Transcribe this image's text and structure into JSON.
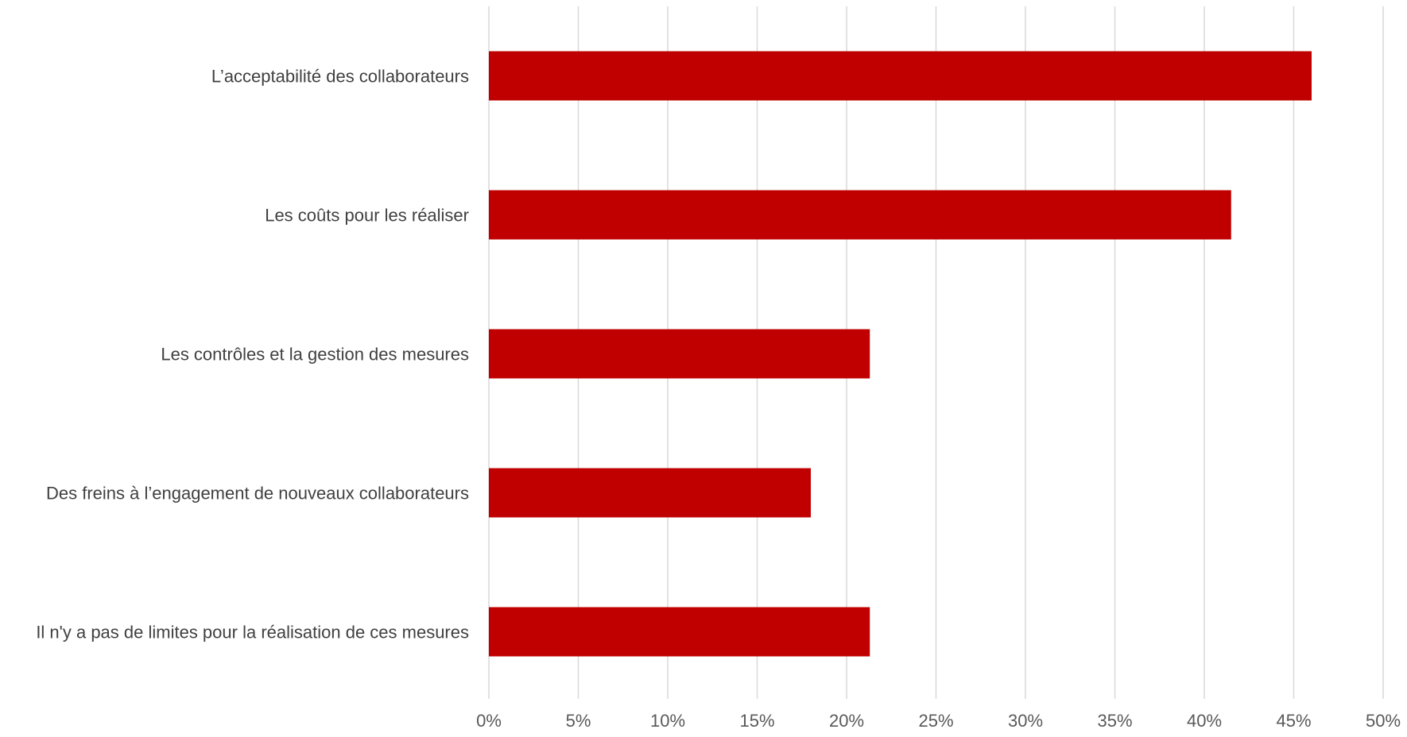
{
  "chart_data": {
    "type": "bar",
    "orientation": "horizontal",
    "categories": [
      "L’acceptabilité des collaborateurs",
      "Les coûts pour les réaliser",
      "Les contrôles et la gestion des mesures",
      "Des freins à l’engagement de nouveaux collaborateurs",
      "Il n'y a pas de limites pour la réalisation de ces mesures"
    ],
    "values": [
      0.46,
      0.415,
      0.213,
      0.18,
      0.213
    ],
    "xlim": [
      0,
      0.5
    ],
    "x_ticks": [
      0,
      0.05,
      0.1,
      0.15,
      0.2,
      0.25,
      0.3,
      0.35,
      0.4,
      0.45,
      0.5
    ],
    "x_tick_labels": [
      "0%",
      "5%",
      "10%",
      "15%",
      "20%",
      "25%",
      "30%",
      "35%",
      "40%",
      "45%",
      "50%"
    ],
    "title": "",
    "xlabel": "",
    "ylabel": "",
    "grid": "vertical",
    "legend": "none",
    "bar_color": "#c00000",
    "grid_color": "#d9d9d9"
  }
}
